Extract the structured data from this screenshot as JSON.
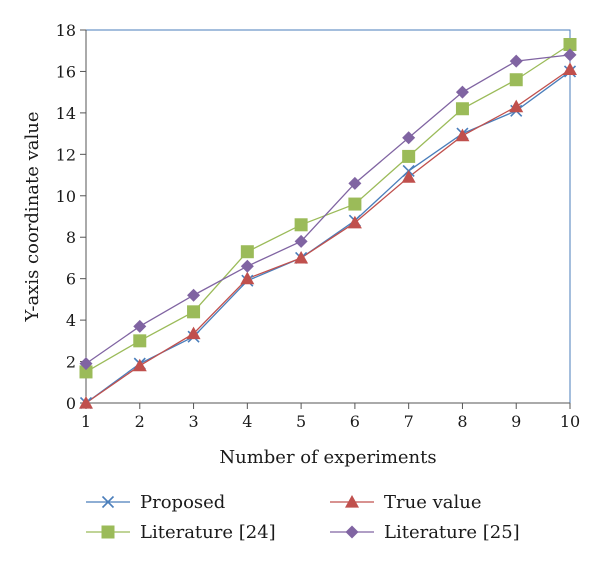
{
  "chart_data": {
    "type": "line",
    "xlabel": "Number of experiments",
    "ylabel": "Y-axis coordinate value",
    "x": [
      1,
      2,
      3,
      4,
      5,
      6,
      7,
      8,
      9,
      10
    ],
    "xlim": [
      1,
      10
    ],
    "ylim": [
      0,
      18
    ],
    "yticks": [
      0,
      2,
      4,
      6,
      8,
      10,
      12,
      14,
      16,
      18
    ],
    "grid": false,
    "legend_position": "bottom",
    "series": [
      {
        "name": "Proposed",
        "marker": "x",
        "color": "#4a7ebb",
        "values": [
          0.0,
          1.9,
          3.2,
          5.9,
          7.0,
          8.8,
          11.2,
          13.0,
          14.1,
          16.0
        ]
      },
      {
        "name": "True value",
        "marker": "triangle",
        "color": "#c0504d",
        "values": [
          0.0,
          1.8,
          3.35,
          6.0,
          7.0,
          8.7,
          10.9,
          12.9,
          14.3,
          16.1
        ]
      },
      {
        "name": "Literature [24]",
        "marker": "square",
        "color": "#9bbb59",
        "values": [
          1.5,
          3.0,
          4.4,
          7.3,
          8.6,
          9.6,
          11.9,
          14.2,
          15.6,
          17.3
        ]
      },
      {
        "name": "Literature [25]",
        "marker": "diamond",
        "color": "#8064a2",
        "values": [
          1.9,
          3.7,
          5.2,
          6.6,
          7.8,
          10.6,
          12.8,
          15.0,
          16.5,
          16.8
        ]
      }
    ],
    "legend_order": [
      0,
      1,
      2,
      3
    ]
  }
}
